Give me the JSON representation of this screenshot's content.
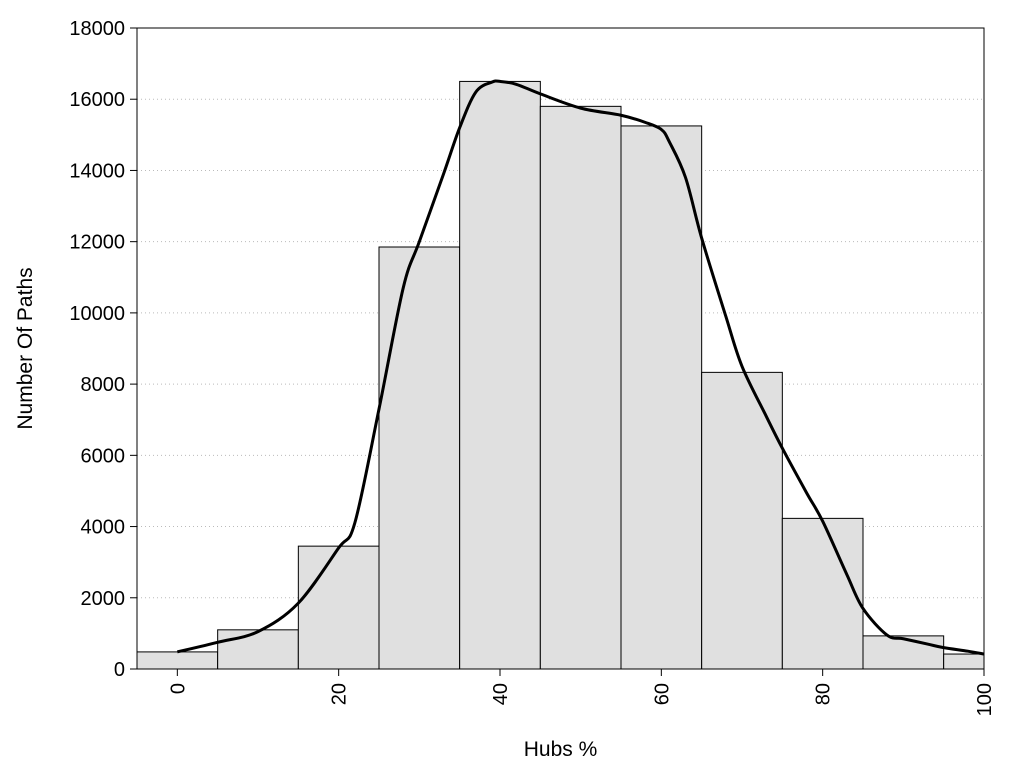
{
  "chart_data": {
    "type": "bar",
    "subtype": "histogram with smoothed density curve",
    "title": "",
    "xlabel": "Hubs %",
    "ylabel": "Number Of Paths",
    "xlim": [
      -5,
      100
    ],
    "ylim": [
      0,
      18000
    ],
    "x_ticks": [
      0,
      20,
      40,
      60,
      80,
      100
    ],
    "y_ticks": [
      0,
      2000,
      4000,
      6000,
      8000,
      10000,
      12000,
      14000,
      16000,
      18000
    ],
    "grid": "horizontal dotted",
    "legend": "none",
    "bin_width": 10,
    "categories": [
      0,
      10,
      20,
      30,
      40,
      50,
      60,
      70,
      80,
      90,
      100
    ],
    "values": [
      480,
      1100,
      3450,
      11850,
      16500,
      15800,
      15250,
      8330,
      4230,
      930,
      420
    ],
    "curve": {
      "x": [
        0,
        5,
        10,
        15,
        20,
        22,
        25,
        28,
        30,
        33,
        35,
        37,
        39,
        40,
        42,
        45,
        50,
        55,
        58,
        60,
        61,
        63,
        65,
        68,
        70,
        73,
        75,
        78,
        80,
        83,
        85,
        88,
        90,
        93,
        95,
        98,
        100
      ],
      "y": [
        480,
        750,
        1050,
        1850,
        3400,
        4100,
        7300,
        10700,
        12000,
        13900,
        15200,
        16200,
        16480,
        16500,
        16420,
        16150,
        15750,
        15550,
        15350,
        15150,
        14800,
        13800,
        12100,
        9900,
        8500,
        7100,
        6200,
        4950,
        4150,
        2650,
        1700,
        950,
        850,
        700,
        600,
        500,
        420
      ]
    },
    "colors": {
      "bar_fill": "#e0e0e0",
      "bar_stroke": "#000000",
      "curve": "#000000",
      "grid": "#bbbbbb"
    }
  }
}
